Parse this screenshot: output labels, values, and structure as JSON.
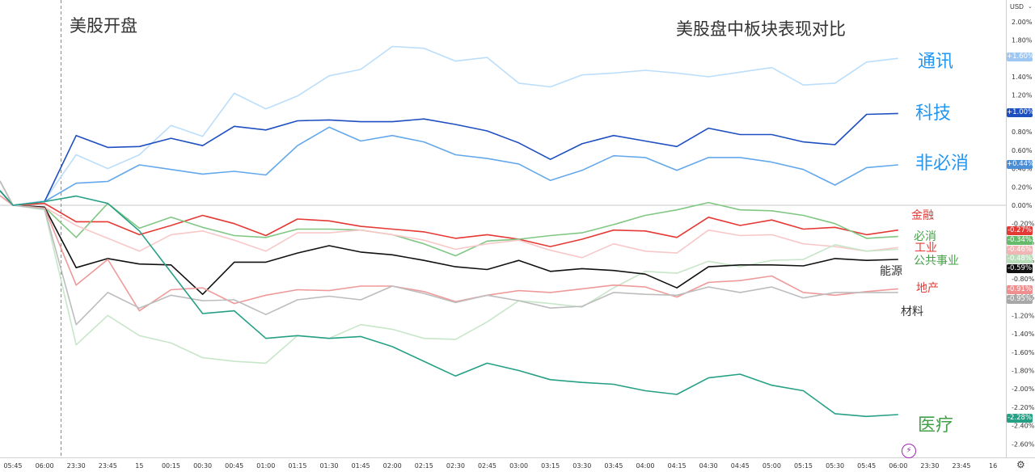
{
  "chart_data": {
    "type": "line",
    "title": "美股盘中板块表现对比",
    "annotation": "美股开盘",
    "currency": "USD",
    "x_ticks": [
      "05:45",
      "06:00",
      "23:30",
      "23:45",
      "15",
      "00:15",
      "00:30",
      "00:45",
      "01:00",
      "01:15",
      "01:30",
      "01:45",
      "02:00",
      "02:15",
      "02:30",
      "02:45",
      "03:00",
      "03:15",
      "03:30",
      "03:45",
      "04:00",
      "04:15",
      "04:30",
      "04:45",
      "05:00",
      "05:15",
      "05:30",
      "05:45",
      "06:00",
      "23:30",
      "23:45",
      "16"
    ],
    "y_ticks": [
      "2.00%",
      "1.80%",
      "1.60%",
      "1.40%",
      "1.20%",
      "1.00%",
      "0.80%",
      "0.60%",
      "0.40%",
      "0.20%",
      "0.00%",
      "-0.20%",
      "-0.40%",
      "-0.60%",
      "-0.80%",
      "-1.00%",
      "-1.20%",
      "-1.40%",
      "-1.60%",
      "-1.80%",
      "-2.00%",
      "-2.20%",
      "-2.40%",
      "-2.60%"
    ],
    "ylim": [
      -2.6,
      2.0
    ],
    "series": [
      {
        "name": "通讯",
        "color": "#bbdefb",
        "last": "+1.60%",
        "label_size": "big",
        "label_color": "#2196f3",
        "values": [
          0,
          0.05,
          0.55,
          0.4,
          0.55,
          0.87,
          0.75,
          1.22,
          1.05,
          1.19,
          1.41,
          1.48,
          1.73,
          1.71,
          1.57,
          1.61,
          1.33,
          1.29,
          1.42,
          1.44,
          1.47,
          1.44,
          1.4,
          1.45,
          1.5,
          1.31,
          1.33,
          1.56,
          1.6
        ]
      },
      {
        "name": "科技",
        "color": "#1e4fc0",
        "last": "+1.00%",
        "label_size": "big",
        "label_color": "#2196f3",
        "values": [
          0,
          0.04,
          0.76,
          0.63,
          0.64,
          0.73,
          0.65,
          0.86,
          0.82,
          0.92,
          0.93,
          0.91,
          0.91,
          0.94,
          0.88,
          0.81,
          0.68,
          0.5,
          0.67,
          0.76,
          0.7,
          0.64,
          0.84,
          0.77,
          0.77,
          0.69,
          0.66,
          0.99,
          1.0
        ]
      },
      {
        "name": "非必消",
        "color": "#64a8ec",
        "last": "+0.44%",
        "label_size": "big",
        "label_color": "#2196f3",
        "values": [
          0,
          0.04,
          0.24,
          0.26,
          0.44,
          0.39,
          0.34,
          0.37,
          0.33,
          0.65,
          0.85,
          0.7,
          0.76,
          0.69,
          0.55,
          0.51,
          0.45,
          0.27,
          0.38,
          0.54,
          0.52,
          0.38,
          0.52,
          0.52,
          0.47,
          0.39,
          0.22,
          0.41,
          0.44
        ]
      },
      {
        "name": "金融",
        "color": "#e53935",
        "last": "-0.27%",
        "label_size": "small",
        "label_color": "#e53935",
        "values": [
          0,
          0.02,
          -0.18,
          -0.18,
          -0.32,
          -0.22,
          -0.11,
          -0.2,
          -0.33,
          -0.15,
          -0.17,
          -0.23,
          -0.26,
          -0.29,
          -0.36,
          -0.32,
          -0.37,
          -0.45,
          -0.37,
          -0.27,
          -0.28,
          -0.35,
          -0.13,
          -0.22,
          -0.16,
          -0.26,
          -0.24,
          -0.32,
          -0.27
        ]
      },
      {
        "name": "必消",
        "color": "#81c784",
        "last": "-0.34%",
        "label_size": "small",
        "label_color": "#43a047",
        "values": [
          0,
          -0.02,
          -0.35,
          0.02,
          -0.25,
          -0.13,
          -0.24,
          -0.33,
          -0.35,
          -0.26,
          -0.26,
          -0.27,
          -0.32,
          -0.42,
          -0.55,
          -0.39,
          -0.37,
          -0.33,
          -0.3,
          -0.21,
          -0.11,
          -0.05,
          0.03,
          -0.05,
          -0.06,
          -0.11,
          -0.2,
          -0.36,
          -0.34
        ]
      },
      {
        "name": "工业",
        "color": "#f8c8c8",
        "last": "-0.46%",
        "label_size": "small",
        "label_color": "#e53935",
        "values": [
          0,
          -0.02,
          -0.22,
          -0.36,
          -0.5,
          -0.32,
          -0.28,
          -0.38,
          -0.5,
          -0.3,
          -0.3,
          -0.27,
          -0.32,
          -0.38,
          -0.48,
          -0.42,
          -0.38,
          -0.49,
          -0.57,
          -0.42,
          -0.5,
          -0.52,
          -0.27,
          -0.33,
          -0.32,
          -0.42,
          -0.45,
          -0.5,
          -0.46
        ]
      },
      {
        "name": "公共事业",
        "color": "#c8e6c9",
        "last": "-0.48%",
        "label_size": "small",
        "label_color": "#43a047",
        "values": [
          0,
          -0.05,
          -1.52,
          -1.2,
          -1.42,
          -1.5,
          -1.66,
          -1.7,
          -1.72,
          -1.42,
          -1.45,
          -1.3,
          -1.35,
          -1.45,
          -1.46,
          -1.27,
          -1.04,
          -1.07,
          -1.11,
          -0.9,
          -0.72,
          -0.74,
          -0.61,
          -0.67,
          -0.6,
          -0.59,
          -0.43,
          -0.5,
          -0.48
        ]
      },
      {
        "name": "能源",
        "color": "#111111",
        "last": "-0.59%",
        "label_size": "small",
        "label_color": "#333333",
        "values": [
          0,
          -0.02,
          -0.68,
          -0.58,
          -0.64,
          -0.65,
          -0.97,
          -0.62,
          -0.62,
          -0.52,
          -0.44,
          -0.51,
          -0.54,
          -0.6,
          -0.67,
          -0.7,
          -0.6,
          -0.72,
          -0.69,
          -0.71,
          -0.75,
          -0.9,
          -0.67,
          -0.65,
          -0.65,
          -0.66,
          -0.58,
          -0.6,
          -0.59
        ]
      },
      {
        "name": "地产",
        "color": "#ef9a9a",
        "last": "-0.91%",
        "label_size": "small",
        "label_color": "#e53935",
        "values": [
          0,
          -0.03,
          -0.87,
          -0.59,
          -1.15,
          -0.92,
          -0.9,
          -1.07,
          -0.98,
          -0.92,
          -0.93,
          -0.88,
          -0.88,
          -0.94,
          -1.05,
          -0.98,
          -0.93,
          -0.95,
          -0.91,
          -0.87,
          -0.89,
          -1.0,
          -0.84,
          -0.82,
          -0.77,
          -0.95,
          -0.98,
          -0.94,
          -0.91
        ]
      },
      {
        "name": "材料",
        "color": "#bdbdbd",
        "last": "-0.95%",
        "label_size": "small",
        "label_color": "#333333",
        "values": [
          0,
          -0.04,
          -1.3,
          -0.95,
          -1.12,
          -0.98,
          -1.04,
          -1.03,
          -1.19,
          -1.03,
          -0.99,
          -1.03,
          -0.88,
          -0.96,
          -1.06,
          -0.98,
          -1.04,
          -1.12,
          -1.1,
          -0.95,
          -0.97,
          -0.98,
          -0.89,
          -0.95,
          -0.89,
          -1.01,
          -0.95,
          -0.95,
          -0.95
        ]
      },
      {
        "name": "医疗",
        "color": "#26a085",
        "last": "-2.28%",
        "label_size": "big",
        "label_color": "#43a047",
        "values": [
          0,
          0.04,
          0.1,
          0.02,
          -0.28,
          -0.73,
          -1.18,
          -1.15,
          -1.45,
          -1.42,
          -1.45,
          -1.43,
          -1.54,
          -1.7,
          -1.86,
          -1.72,
          -1.8,
          -1.9,
          -1.93,
          -1.95,
          -2.02,
          -2.06,
          -1.88,
          -1.84,
          -1.96,
          -2.02,
          -2.27,
          -2.3,
          -2.28
        ]
      }
    ]
  },
  "ui": {
    "currency_selector": "USD",
    "currency_chevron": "chevron-down-icon",
    "lightning_icon": "lightning-icon",
    "settings_icon": "gear-icon"
  }
}
